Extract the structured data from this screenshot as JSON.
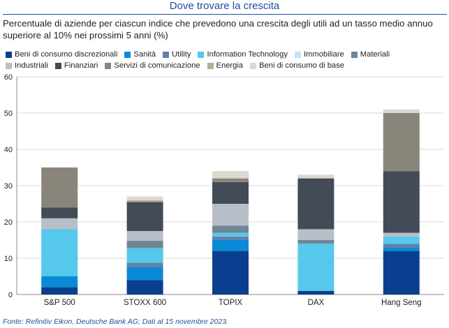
{
  "title": "Dove trovare la crescita",
  "subtitle": "Percentuale di aziende per ciascun indice che prevedono una crescita degli utili ad un tasso medio annuo superiore al 10% nei prossimi 5 anni (%)",
  "footer": "Fonte: Refinitiv Eikon, Deutsche Bank AG; Dati al 15 novembre 2023.",
  "chart_data": {
    "type": "bar",
    "stacked": true,
    "categories": [
      "S&P 500",
      "STOXX 600",
      "TOPIX",
      "DAX",
      "Hang Seng"
    ],
    "ylim": [
      0,
      60
    ],
    "yticks": [
      0,
      10,
      20,
      30,
      40,
      50,
      60
    ],
    "grid": true,
    "legend_position": "top",
    "series": [
      {
        "name": "Beni di consumo discrezionali",
        "color": "#0a3f8f",
        "values": [
          2,
          4,
          12,
          1,
          12
        ]
      },
      {
        "name": "Sanità",
        "color": "#0a8ad6",
        "values": [
          3,
          3.5,
          3,
          0,
          1
        ]
      },
      {
        "name": "Utility",
        "color": "#5f84ac",
        "values": [
          0,
          1.3,
          1,
          0,
          1
        ]
      },
      {
        "name": "Information Technology",
        "color": "#55c8ec",
        "values": [
          13,
          4,
          1,
          13,
          2
        ]
      },
      {
        "name": "Immobiliare",
        "color": "#bfe6f5",
        "values": [
          0,
          0,
          0,
          0,
          0
        ]
      },
      {
        "name": "Materiali",
        "color": "#6f8596",
        "values": [
          0,
          2,
          2,
          1,
          0
        ]
      },
      {
        "name": "Industriali",
        "color": "#b8bec8",
        "values": [
          3,
          2.7,
          6,
          3,
          1
        ]
      },
      {
        "name": "Finanziari",
        "color": "#424b56",
        "values": [
          3,
          8,
          6,
          14,
          17
        ]
      },
      {
        "name": "Servizi di comunicazione",
        "color": "#8a857b",
        "values": [
          11,
          0,
          1,
          0,
          16
        ]
      },
      {
        "name": "Energia",
        "color": "#b5ab9b",
        "values": [
          0,
          0.5,
          0,
          0,
          0
        ]
      },
      {
        "name": "Beni di consumo di base",
        "color": "#ddd8cf",
        "values": [
          0,
          1,
          2,
          1,
          1
        ]
      }
    ]
  },
  "colors": {
    "title": "#1f4e9c",
    "axis": "#8a8a8a",
    "grid": "#d9d9d9"
  }
}
